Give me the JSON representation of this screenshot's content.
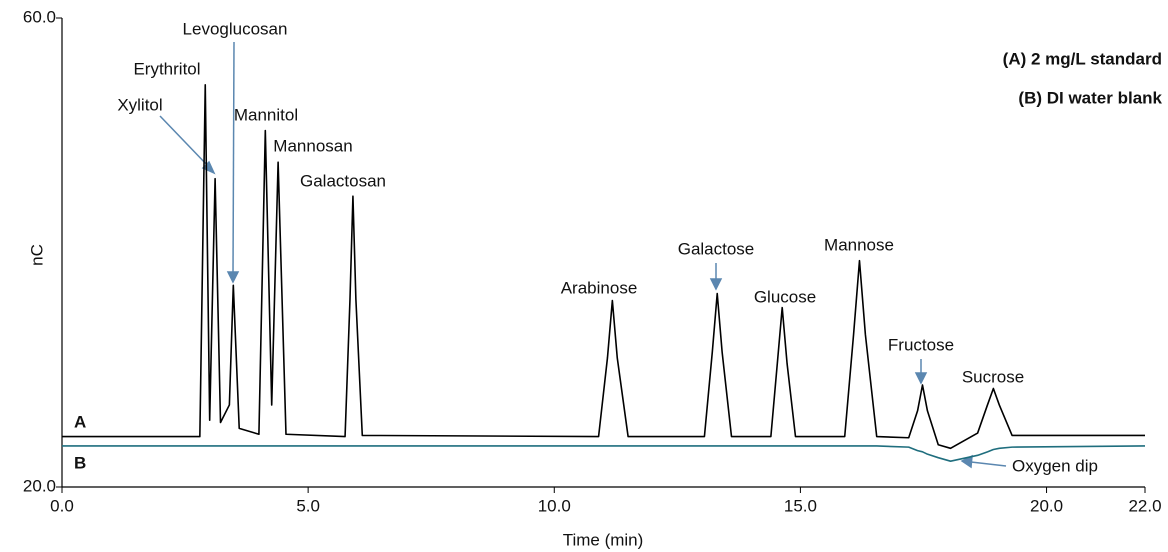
{
  "chart_data": {
    "type": "line",
    "xlabel": "Time (min)",
    "ylabel": "nC",
    "xlim": [
      0,
      22
    ],
    "ylim": [
      20,
      60
    ],
    "xticks": [
      {
        "value": 0,
        "label": "0.0"
      },
      {
        "value": 5,
        "label": "5.0"
      },
      {
        "value": 10,
        "label": "10.0"
      },
      {
        "value": 15,
        "label": "15.0"
      },
      {
        "value": 20,
        "label": "20.0"
      },
      {
        "value": 22,
        "label": "22.0"
      }
    ],
    "yticks": [
      {
        "value": 20,
        "label": "20.0"
      },
      {
        "value": 60,
        "label": "60.0"
      }
    ],
    "x": [
      0,
      2.8,
      2.91,
      3.0,
      3.11,
      3.22,
      3.4,
      3.48,
      3.6,
      4.0,
      4.13,
      4.26,
      4.39,
      4.55,
      5.75,
      5.85,
      5.91,
      5.97,
      6.1,
      10.9,
      11.08,
      11.18,
      11.28,
      11.5,
      13.05,
      13.21,
      13.31,
      13.41,
      13.6,
      14.4,
      14.53,
      14.63,
      14.73,
      14.9,
      15.9,
      16.08,
      16.2,
      16.32,
      16.55,
      17.2,
      17.38,
      17.48,
      17.58,
      17.8,
      18.05,
      18.6,
      18.8,
      18.92,
      19.04,
      19.3,
      22
    ],
    "series": [
      {
        "name": "A",
        "color": "#000000",
        "values": [
          24.3,
          24.3,
          54.3,
          25.7,
          46.3,
          25.5,
          27,
          37.2,
          25,
          24.5,
          50.4,
          27,
          47.7,
          24.5,
          24.3,
          36,
          44.8,
          36,
          24.4,
          24.3,
          31,
          35.9,
          31,
          24.3,
          24.3,
          31.5,
          36.5,
          31.5,
          24.3,
          24.3,
          30.5,
          35.3,
          30.5,
          24.3,
          24.3,
          33,
          39.3,
          33,
          24.3,
          24.2,
          26.5,
          28.7,
          26.5,
          23.6,
          23.3,
          24.6,
          27,
          28.4,
          27,
          24.4,
          24.4
        ]
      },
      {
        "name": "B",
        "color": "#1f6e7e",
        "values": [
          23.5,
          23.5,
          23.5,
          23.5,
          23.5,
          23.5,
          23.5,
          23.5,
          23.5,
          23.5,
          23.5,
          23.5,
          23.5,
          23.5,
          23.5,
          23.5,
          23.5,
          23.5,
          23.5,
          23.5,
          23.5,
          23.5,
          23.5,
          23.5,
          23.5,
          23.5,
          23.5,
          23.5,
          23.5,
          23.5,
          23.5,
          23.5,
          23.5,
          23.5,
          23.5,
          23.5,
          23.5,
          23.5,
          23.5,
          23.4,
          23.1,
          23.0,
          22.8,
          22.5,
          22.2,
          22.7,
          23.0,
          23.2,
          23.3,
          23.4,
          23.5
        ]
      }
    ],
    "annotations": [
      "Levoglucosan",
      "Erythritol",
      "Xylitol",
      "Mannitol",
      "Mannosan",
      "Galactosan",
      "Arabinose",
      "Galactose",
      "Glucose",
      "Mannose",
      "Fructose",
      "Sucrose",
      "Oxygen dip"
    ],
    "legend": [
      "(A) 2 mg/L standard",
      "(B) DI water blank"
    ]
  }
}
